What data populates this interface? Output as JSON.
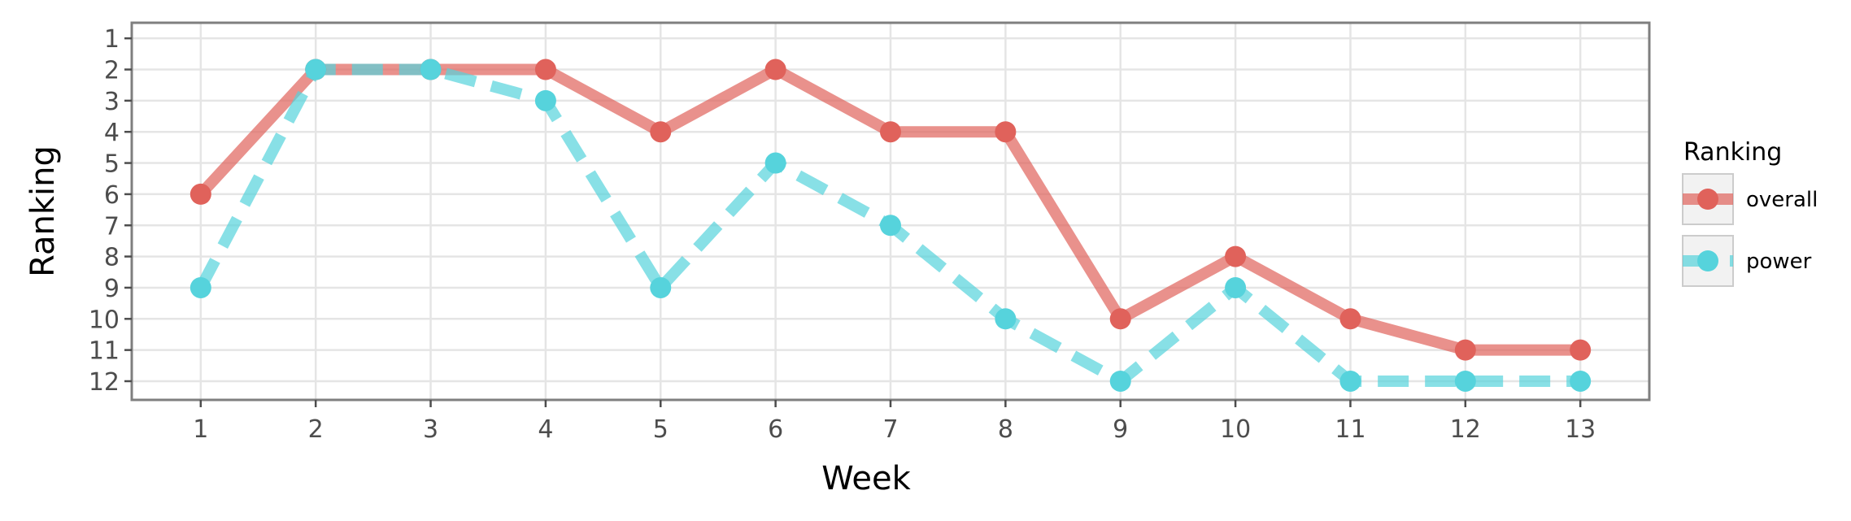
{
  "chart_data": {
    "type": "line",
    "xlabel": "Week",
    "ylabel": "Ranking",
    "x": [
      1,
      2,
      3,
      4,
      5,
      6,
      7,
      8,
      9,
      10,
      11,
      12,
      13
    ],
    "xlim": [
      0.4,
      13.6
    ],
    "ylim": [
      0.5,
      12.6
    ],
    "y_reversed": true,
    "x_ticks": [
      1,
      2,
      3,
      4,
      5,
      6,
      7,
      8,
      9,
      10,
      11,
      12,
      13
    ],
    "y_ticks": [
      1,
      2,
      3,
      4,
      5,
      6,
      7,
      8,
      9,
      10,
      11,
      12
    ],
    "grid": true,
    "legend": {
      "title": "Ranking",
      "placement": "right"
    },
    "series": [
      {
        "name": "overall",
        "color": "#e0625b",
        "line_style": "solid",
        "values": [
          6,
          2,
          2,
          2,
          4,
          2,
          4,
          4,
          10,
          8,
          10,
          11,
          11
        ]
      },
      {
        "name": "power",
        "color": "#56d3dc",
        "line_style": "dashed",
        "values": [
          9,
          2,
          2,
          3,
          9,
          5,
          7,
          10,
          12,
          9,
          12,
          12,
          12
        ]
      }
    ]
  }
}
